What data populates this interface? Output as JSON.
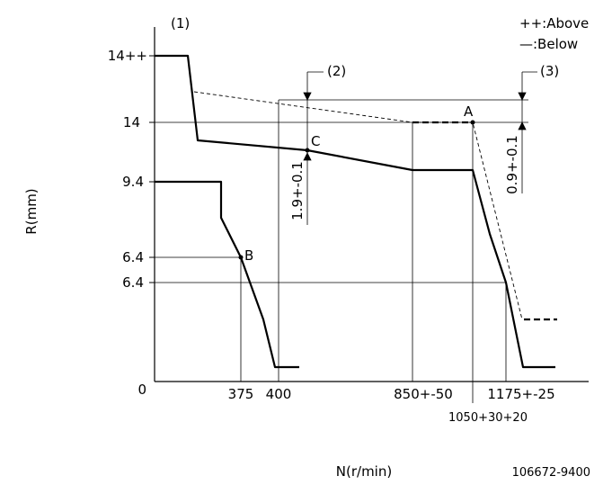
{
  "legend": {
    "above": "++:Above",
    "below": "—:Below"
  },
  "labels": {
    "note1": "(1)",
    "note2": "(2)",
    "note3": "(3)",
    "y_axis": "R(mm)",
    "x_axis": "N(r/min)",
    "drawing_code": "106672-9400",
    "point_a": "A",
    "point_b": "B",
    "point_c": "C"
  },
  "y_ticks": [
    "14++",
    "14",
    "9.4",
    "6.4",
    "6.4",
    "0"
  ],
  "x_ticks": [
    "375",
    "400",
    "850+-50",
    "1050+30+20",
    "1175+-25"
  ],
  "dimensions": {
    "dim2": "1.9+-0.1",
    "dim3": "0.9+-0.1"
  }
}
